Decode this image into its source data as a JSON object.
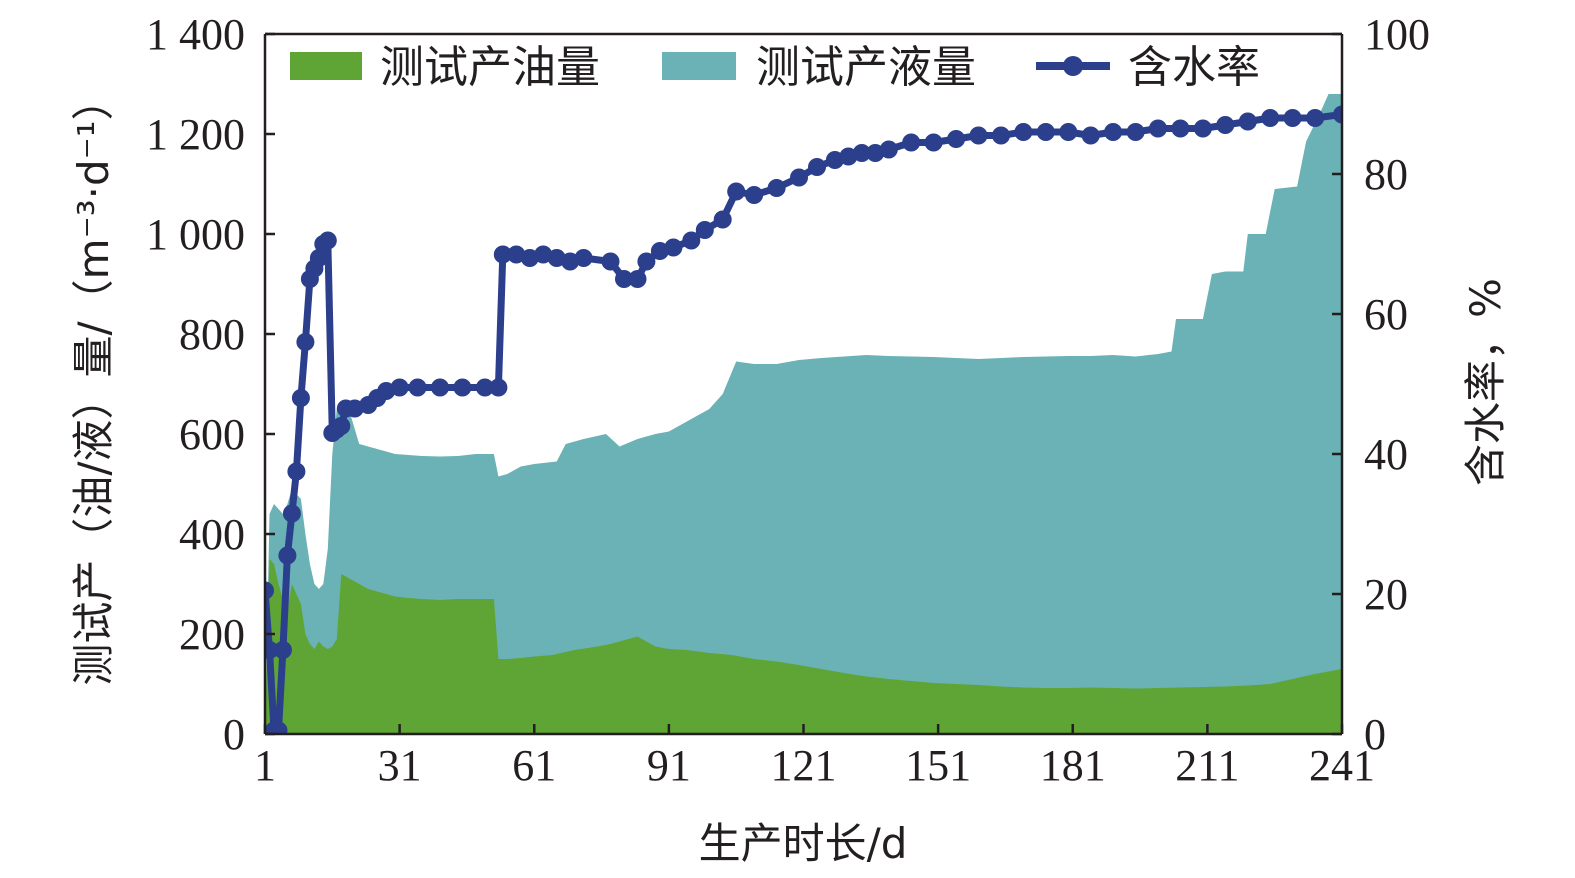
{
  "chart_data": {
    "type": "area",
    "xlabel": "生产时长/d",
    "ylabel_left": "测试产（油/液）量/（m⁻³·d⁻¹）",
    "ylabel_right": "含水率，%",
    "xlim": [
      1,
      241
    ],
    "ylim_left": [
      0,
      1400
    ],
    "ylim_right": [
      0,
      100
    ],
    "x_ticks": [
      "1",
      "31",
      "61",
      "91",
      "121",
      "151",
      "181",
      "211",
      "241"
    ],
    "y_ticks_left": [
      "0",
      "200",
      "400",
      "600",
      "800",
      "1 000",
      "1 200",
      "1 400"
    ],
    "y_ticks_right": [
      "0",
      "20",
      "40",
      "60",
      "80",
      "100"
    ],
    "legend_position": "top",
    "colors": {
      "oil": "#5ea535",
      "liquid": "#6ab2b6",
      "water_cut": "#2b3f8c",
      "axis": "#231f20"
    },
    "series": [
      {
        "name": "测试产油量",
        "kind": "area",
        "axis": "left",
        "points": [
          [
            1,
            0
          ],
          [
            2,
            350
          ],
          [
            3,
            340
          ],
          [
            4,
            300
          ],
          [
            5,
            270
          ],
          [
            6,
            250
          ],
          [
            7,
            300
          ],
          [
            8,
            280
          ],
          [
            9,
            260
          ],
          [
            10,
            200
          ],
          [
            11,
            180
          ],
          [
            12,
            170
          ],
          [
            13,
            185
          ],
          [
            14,
            175
          ],
          [
            15,
            170
          ],
          [
            16,
            175
          ],
          [
            17,
            190
          ],
          [
            18,
            320
          ],
          [
            20,
            310
          ],
          [
            22,
            300
          ],
          [
            24,
            290
          ],
          [
            26,
            285
          ],
          [
            28,
            280
          ],
          [
            30,
            275
          ],
          [
            33,
            272
          ],
          [
            36,
            270
          ],
          [
            40,
            268
          ],
          [
            44,
            270
          ],
          [
            48,
            270
          ],
          [
            52,
            270
          ],
          [
            53,
            150
          ],
          [
            55,
            150
          ],
          [
            58,
            152
          ],
          [
            61,
            155
          ],
          [
            65,
            158
          ],
          [
            70,
            168
          ],
          [
            75,
            175
          ],
          [
            78,
            180
          ],
          [
            82,
            190
          ],
          [
            84,
            195
          ],
          [
            86,
            185
          ],
          [
            88,
            175
          ],
          [
            91,
            170
          ],
          [
            95,
            168
          ],
          [
            100,
            162
          ],
          [
            105,
            158
          ],
          [
            110,
            150
          ],
          [
            115,
            145
          ],
          [
            120,
            138
          ],
          [
            125,
            130
          ],
          [
            130,
            122
          ],
          [
            135,
            115
          ],
          [
            140,
            110
          ],
          [
            145,
            106
          ],
          [
            150,
            102
          ],
          [
            155,
            100
          ],
          [
            160,
            98
          ],
          [
            165,
            95
          ],
          [
            170,
            93
          ],
          [
            175,
            92
          ],
          [
            180,
            92
          ],
          [
            185,
            93
          ],
          [
            190,
            92
          ],
          [
            195,
            91
          ],
          [
            200,
            92
          ],
          [
            205,
            93
          ],
          [
            210,
            94
          ],
          [
            215,
            95
          ],
          [
            220,
            97
          ],
          [
            225,
            100
          ],
          [
            230,
            110
          ],
          [
            235,
            120
          ],
          [
            238,
            125
          ],
          [
            241,
            130
          ]
        ]
      },
      {
        "name": "测试产液量",
        "kind": "area",
        "axis": "left",
        "points": [
          [
            1,
            0
          ],
          [
            2,
            440
          ],
          [
            3,
            460
          ],
          [
            4,
            450
          ],
          [
            5,
            440
          ],
          [
            6,
            460
          ],
          [
            7,
            490
          ],
          [
            8,
            480
          ],
          [
            9,
            470
          ],
          [
            10,
            400
          ],
          [
            11,
            340
          ],
          [
            12,
            300
          ],
          [
            13,
            290
          ],
          [
            14,
            300
          ],
          [
            15,
            370
          ],
          [
            16,
            560
          ],
          [
            17,
            650
          ],
          [
            18,
            655
          ],
          [
            19,
            650
          ],
          [
            20,
            640
          ],
          [
            22,
            580
          ],
          [
            24,
            575
          ],
          [
            26,
            570
          ],
          [
            28,
            565
          ],
          [
            30,
            560
          ],
          [
            33,
            558
          ],
          [
            36,
            556
          ],
          [
            40,
            555
          ],
          [
            44,
            556
          ],
          [
            48,
            560
          ],
          [
            52,
            560
          ],
          [
            53,
            515
          ],
          [
            55,
            520
          ],
          [
            58,
            535
          ],
          [
            61,
            540
          ],
          [
            66,
            545
          ],
          [
            68,
            580
          ],
          [
            72,
            590
          ],
          [
            77,
            600
          ],
          [
            80,
            575
          ],
          [
            84,
            590
          ],
          [
            88,
            600
          ],
          [
            91,
            605
          ],
          [
            95,
            625
          ],
          [
            100,
            650
          ],
          [
            103,
            680
          ],
          [
            106,
            745
          ],
          [
            110,
            740
          ],
          [
            115,
            740
          ],
          [
            120,
            748
          ],
          [
            125,
            752
          ],
          [
            130,
            755
          ],
          [
            135,
            758
          ],
          [
            140,
            756
          ],
          [
            145,
            755
          ],
          [
            150,
            754
          ],
          [
            155,
            752
          ],
          [
            160,
            750
          ],
          [
            165,
            752
          ],
          [
            170,
            754
          ],
          [
            175,
            755
          ],
          [
            180,
            756
          ],
          [
            185,
            756
          ],
          [
            190,
            758
          ],
          [
            195,
            755
          ],
          [
            200,
            760
          ],
          [
            203,
            765
          ],
          [
            204,
            830
          ],
          [
            210,
            830
          ],
          [
            212,
            920
          ],
          [
            215,
            925
          ],
          [
            219,
            925
          ],
          [
            220,
            1000
          ],
          [
            224,
            1000
          ],
          [
            226,
            1090
          ],
          [
            231,
            1095
          ],
          [
            233,
            1185
          ],
          [
            236,
            1240
          ],
          [
            238,
            1280
          ],
          [
            241,
            1280
          ]
        ]
      },
      {
        "name": "含水率",
        "kind": "line",
        "axis": "right",
        "points": [
          [
            1,
            20.5
          ],
          [
            2,
            12.0
          ],
          [
            3,
            0.5
          ],
          [
            4,
            0.5
          ],
          [
            5,
            12.0
          ],
          [
            6,
            25.5
          ],
          [
            7,
            31.5
          ],
          [
            8,
            37.5
          ],
          [
            9,
            48.0
          ],
          [
            10,
            56.0
          ],
          [
            11,
            65.0
          ],
          [
            12,
            66.5
          ],
          [
            13,
            68.0
          ],
          [
            14,
            70.0
          ],
          [
            15,
            70.5
          ],
          [
            16,
            43.0
          ],
          [
            17,
            43.5
          ],
          [
            18,
            44.0
          ],
          [
            19,
            46.5
          ],
          [
            21,
            46.5
          ],
          [
            24,
            47.0
          ],
          [
            26,
            48.0
          ],
          [
            28,
            49.0
          ],
          [
            31,
            49.5
          ],
          [
            35,
            49.5
          ],
          [
            40,
            49.5
          ],
          [
            45,
            49.5
          ],
          [
            50,
            49.5
          ],
          [
            53,
            49.5
          ],
          [
            54,
            68.5
          ],
          [
            57,
            68.5
          ],
          [
            60,
            68.0
          ],
          [
            63,
            68.5
          ],
          [
            66,
            68.0
          ],
          [
            69,
            67.5
          ],
          [
            72,
            68.0
          ],
          [
            78,
            67.5
          ],
          [
            81,
            65.0
          ],
          [
            84,
            65.0
          ],
          [
            86,
            67.5
          ],
          [
            89,
            69.0
          ],
          [
            92,
            69.5
          ],
          [
            96,
            70.5
          ],
          [
            99,
            72.0
          ],
          [
            103,
            73.5
          ],
          [
            106,
            77.5
          ],
          [
            110,
            77.0
          ],
          [
            115,
            78.0
          ],
          [
            120,
            79.5
          ],
          [
            124,
            81.0
          ],
          [
            128,
            82.0
          ],
          [
            131,
            82.5
          ],
          [
            134,
            83.0
          ],
          [
            137,
            83.0
          ],
          [
            140,
            83.5
          ],
          [
            145,
            84.5
          ],
          [
            150,
            84.5
          ],
          [
            155,
            85.0
          ],
          [
            160,
            85.5
          ],
          [
            165,
            85.5
          ],
          [
            170,
            86.0
          ],
          [
            175,
            86.0
          ],
          [
            180,
            86.0
          ],
          [
            185,
            85.5
          ],
          [
            190,
            86.0
          ],
          [
            195,
            86.0
          ],
          [
            200,
            86.5
          ],
          [
            205,
            86.5
          ],
          [
            210,
            86.5
          ],
          [
            215,
            87.0
          ],
          [
            220,
            87.5
          ],
          [
            225,
            88.0
          ],
          [
            230,
            88.0
          ],
          [
            235,
            88.0
          ],
          [
            241,
            88.5
          ]
        ]
      }
    ]
  }
}
